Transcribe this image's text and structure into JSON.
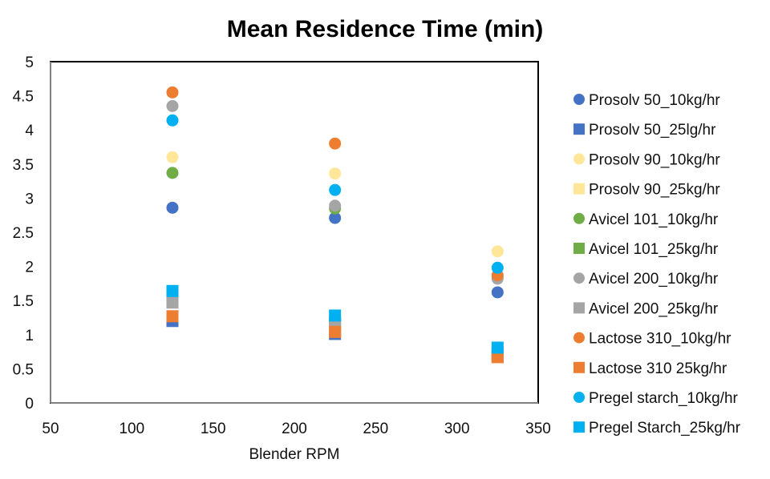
{
  "chart_data": {
    "type": "scatter",
    "title": "Mean Residence Time (min)",
    "xlabel": "Blender RPM",
    "ylabel": "",
    "xlim": [
      50,
      350
    ],
    "ylim": [
      0,
      5
    ],
    "xticks": [
      "50",
      "100",
      "150",
      "200",
      "250",
      "300",
      "350"
    ],
    "yticks": [
      "0",
      "0.5",
      "1",
      "1.5",
      "2",
      "2.5",
      "3",
      "3.5",
      "4",
      "4.5",
      "5"
    ],
    "grid": false,
    "legend_position": "right",
    "series": [
      {
        "name": "Prosolv 50_10kg/hr",
        "marker": "circle",
        "color": "#4472C4",
        "x": [
          125,
          225,
          325
        ],
        "y": [
          2.86,
          2.71,
          1.62
        ]
      },
      {
        "name": "Prosolv 50_25lg/hr",
        "marker": "square",
        "color": "#4472C4",
        "x": [
          125,
          225,
          325
        ],
        "y": [
          1.2,
          1.01,
          0.68
        ]
      },
      {
        "name": "Prosolv 90_10kg/hr",
        "marker": "circle",
        "color": "#FFE699",
        "x": [
          125,
          225,
          325
        ],
        "y": [
          3.6,
          3.36,
          2.22
        ]
      },
      {
        "name": "Prosolv 90_25kg/hr",
        "marker": "square",
        "color": "#FFE699",
        "x": [
          125,
          225,
          325
        ],
        "y": [
          1.49,
          1.15,
          0.75
        ]
      },
      {
        "name": "Avicel 101_10kg/hr",
        "marker": "circle",
        "color": "#70AD47",
        "x": [
          125,
          225,
          325
        ],
        "y": [
          3.37,
          2.85,
          1.85
        ]
      },
      {
        "name": "Avicel 101_25kg/hr",
        "marker": "square",
        "color": "#70AD47",
        "x": [
          125,
          225,
          325
        ],
        "y": [
          1.48,
          1.16,
          0.72
        ]
      },
      {
        "name": "Avicel 200_10kg/hr",
        "marker": "circle",
        "color": "#A5A5A5",
        "x": [
          125,
          225,
          325
        ],
        "y": [
          4.35,
          2.89,
          1.82
        ]
      },
      {
        "name": "Avicel 200_25kg/hr",
        "marker": "square",
        "color": "#A5A5A5",
        "x": [
          125,
          225,
          325
        ],
        "y": [
          1.47,
          1.17,
          0.73
        ]
      },
      {
        "name": "Lactose 310_10kg/hr",
        "marker": "circle",
        "color": "#ED7D31",
        "x": [
          125,
          225,
          325
        ],
        "y": [
          4.55,
          3.8,
          1.87
        ]
      },
      {
        "name": "Lactose 310 25kg/hr",
        "marker": "square",
        "color": "#ED7D31",
        "x": [
          125,
          225,
          325
        ],
        "y": [
          1.27,
          1.04,
          0.67
        ]
      },
      {
        "name": "Pregel starch_10kg/hr",
        "marker": "circle",
        "color": "#00B0F0",
        "x": [
          125,
          225,
          325
        ],
        "y": [
          4.14,
          3.12,
          1.98
        ]
      },
      {
        "name": "Pregel Starch_25kg/hr",
        "marker": "square",
        "color": "#00B0F0",
        "x": [
          125,
          225,
          325
        ],
        "y": [
          1.64,
          1.28,
          0.81
        ]
      }
    ]
  }
}
